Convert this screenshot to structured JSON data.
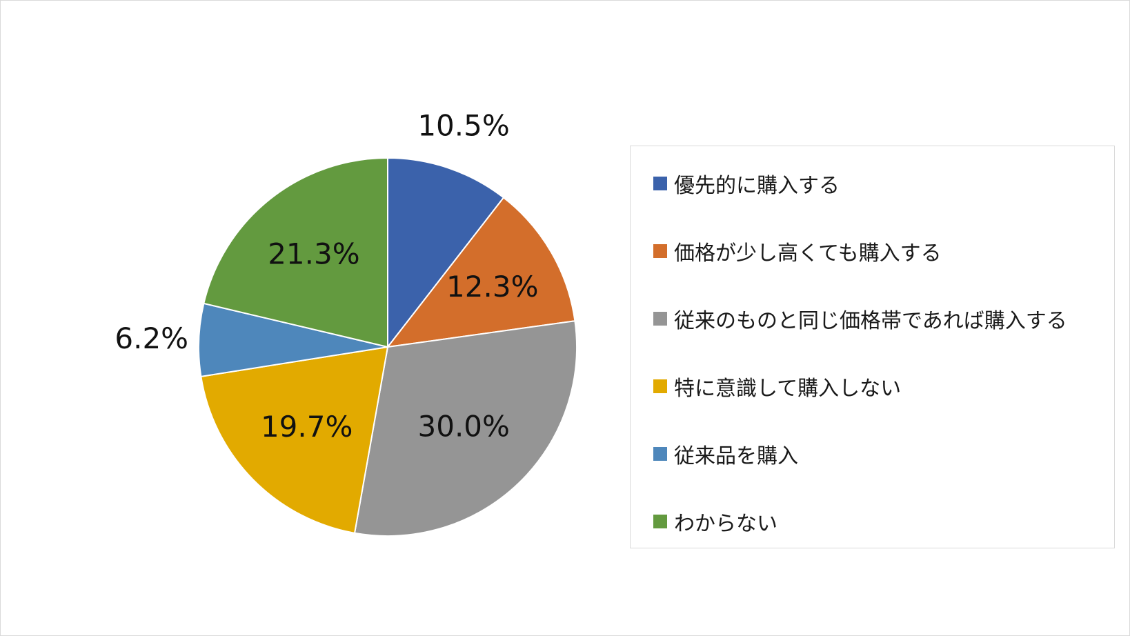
{
  "chart_data": {
    "type": "pie",
    "title": "",
    "slices": [
      {
        "label": "優先的に購入する",
        "value": 10.5,
        "value_label": "10.5%",
        "color": "#3b62ab"
      },
      {
        "label": "価格が少し高くても購入する",
        "value": 12.3,
        "value_label": "12.3%",
        "color": "#d36e2b"
      },
      {
        "label": "従来のものと同じ価格帯であれば購入する",
        "value": 30.0,
        "value_label": "30.0%",
        "color": "#959595"
      },
      {
        "label": "特に意識して購入しない",
        "value": 19.7,
        "value_label": "19.7%",
        "color": "#e2aa00"
      },
      {
        "label": "従来品を購入",
        "value": 6.2,
        "value_label": "6.2%",
        "color": "#4e87bb"
      },
      {
        "label": "わからない",
        "value": 21.3,
        "value_label": "21.3%",
        "color": "#639a3f"
      }
    ],
    "start_angle": "12 o'clock",
    "direction": "clockwise",
    "legend_position": "right"
  }
}
